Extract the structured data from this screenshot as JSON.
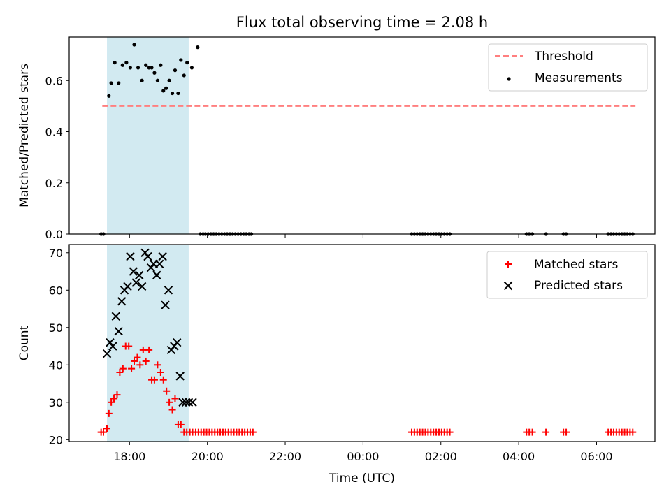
{
  "figure_title": "Flux total observing time = 2.08 h",
  "colors": {
    "shade": "#add8e6",
    "threshold": "#ff7f7f",
    "matched": "#ff0000",
    "predicted": "#000000",
    "measurement": "#000000"
  },
  "chart_data": [
    {
      "type": "scatter",
      "title": "Flux total observing time = 2.08 h",
      "xlabel": "",
      "ylabel": "Matched/Predicted stars",
      "x_tick_labels": [
        "18:00",
        "20:00",
        "22:00",
        "00:00",
        "02:00",
        "04:00",
        "06:00"
      ],
      "x_tick_hours": [
        18,
        20,
        22,
        24,
        26,
        28,
        30
      ],
      "xlim_hours": [
        16.45,
        31.5
      ],
      "ylim": [
        0,
        0.77
      ],
      "y_ticks": [
        0.0,
        0.2,
        0.4,
        0.6
      ],
      "y_tick_labels": [
        "0.0",
        "0.2",
        "0.4",
        "0.6"
      ],
      "grid": false,
      "legend_position": "upper right",
      "shaded_span_hours": [
        17.42,
        19.52
      ],
      "threshold": {
        "name": "Threshold",
        "y": 0.5,
        "x_hours": [
          17.3,
          31.0
        ],
        "style": "dashed"
      },
      "series": [
        {
          "name": "Measurements",
          "marker": "dot",
          "x_hours": [
            17.27,
            17.33,
            17.47,
            17.53,
            17.62,
            17.72,
            17.82,
            17.92,
            18.02,
            18.12,
            18.22,
            18.32,
            18.42,
            18.5,
            18.57,
            18.64,
            18.72,
            18.8,
            18.87,
            18.94,
            19.02,
            19.1,
            19.17,
            19.25,
            19.32,
            19.4,
            19.48,
            19.6,
            19.75,
            19.82,
            19.89,
            19.95,
            20.02,
            20.09,
            20.16,
            20.23,
            20.3,
            20.37,
            20.44,
            20.51,
            20.58,
            20.65,
            20.72,
            20.79,
            20.86,
            20.93,
            21.0,
            21.07,
            21.13,
            25.25,
            25.32,
            25.39,
            25.46,
            25.53,
            25.6,
            25.67,
            25.74,
            25.81,
            25.88,
            25.95,
            26.02,
            26.09,
            26.16,
            26.23,
            28.2,
            28.27,
            28.35,
            28.7,
            29.15,
            29.22,
            30.3,
            30.37,
            30.44,
            30.51,
            30.58,
            30.65,
            30.72,
            30.79,
            30.86,
            30.93
          ],
          "y": [
            0.0,
            0.0,
            0.54,
            0.59,
            0.67,
            0.59,
            0.66,
            0.67,
            0.65,
            0.74,
            0.65,
            0.6,
            0.66,
            0.65,
            0.65,
            0.63,
            0.6,
            0.66,
            0.56,
            0.57,
            0.6,
            0.55,
            0.64,
            0.55,
            0.68,
            0.62,
            0.67,
            0.65,
            0.73,
            0.0,
            0.0,
            0.0,
            0.0,
            0.0,
            0.0,
            0.0,
            0.0,
            0.0,
            0.0,
            0.0,
            0.0,
            0.0,
            0.0,
            0.0,
            0.0,
            0.0,
            0.0,
            0.0,
            0.0,
            0.0,
            0.0,
            0.0,
            0.0,
            0.0,
            0.0,
            0.0,
            0.0,
            0.0,
            0.0,
            0.0,
            0.0,
            0.0,
            0.0,
            0.0,
            0.0,
            0.0,
            0.0,
            0.0,
            0.0,
            0.0,
            0.0,
            0.0,
            0.0,
            0.0,
            0.0,
            0.0,
            0.0,
            0.0,
            0.0,
            0.0
          ]
        }
      ]
    },
    {
      "type": "scatter",
      "title": "",
      "xlabel": "Time (UTC)",
      "ylabel": "Count",
      "x_tick_labels": [
        "18:00",
        "20:00",
        "22:00",
        "00:00",
        "02:00",
        "04:00",
        "06:00"
      ],
      "x_tick_hours": [
        18,
        20,
        22,
        24,
        26,
        28,
        30
      ],
      "xlim_hours": [
        16.45,
        31.5
      ],
      "ylim": [
        19.5,
        72.2
      ],
      "y_ticks": [
        20,
        30,
        40,
        50,
        60,
        70
      ],
      "y_tick_labels": [
        "20",
        "30",
        "40",
        "50",
        "60",
        "70"
      ],
      "grid": false,
      "legend_position": "upper right",
      "shaded_span_hours": [
        17.42,
        19.52
      ],
      "series": [
        {
          "name": "Matched stars",
          "marker": "plus",
          "x_hours": [
            17.27,
            17.33,
            17.42,
            17.47,
            17.53,
            17.6,
            17.68,
            17.75,
            17.83,
            17.9,
            17.98,
            18.05,
            18.12,
            18.2,
            18.27,
            18.35,
            18.42,
            18.5,
            18.57,
            18.64,
            18.72,
            18.8,
            18.87,
            18.95,
            19.02,
            19.1,
            19.17,
            19.25,
            19.32,
            19.4,
            19.47,
            19.55,
            19.62,
            19.7,
            19.77,
            19.84,
            19.91,
            19.98,
            20.05,
            20.12,
            20.19,
            20.26,
            20.33,
            20.4,
            20.47,
            20.54,
            20.61,
            20.68,
            20.75,
            20.82,
            20.89,
            20.96,
            21.03,
            21.1,
            21.17,
            25.25,
            25.32,
            25.39,
            25.46,
            25.53,
            25.6,
            25.67,
            25.74,
            25.81,
            25.88,
            25.95,
            26.02,
            26.09,
            26.16,
            26.23,
            28.2,
            28.27,
            28.35,
            28.7,
            29.15,
            29.22,
            30.3,
            30.37,
            30.44,
            30.51,
            30.58,
            30.65,
            30.72,
            30.79,
            30.86,
            30.93
          ],
          "y": [
            22,
            22,
            23,
            27,
            30,
            31,
            32,
            38,
            39,
            45,
            45,
            39,
            41,
            42,
            40,
            44,
            41,
            44,
            36,
            36,
            40,
            38,
            36,
            33,
            30,
            28,
            31,
            24,
            24,
            22,
            22,
            22,
            22,
            22,
            22,
            22,
            22,
            22,
            22,
            22,
            22,
            22,
            22,
            22,
            22,
            22,
            22,
            22,
            22,
            22,
            22,
            22,
            22,
            22,
            22,
            22,
            22,
            22,
            22,
            22,
            22,
            22,
            22,
            22,
            22,
            22,
            22,
            22,
            22,
            22,
            22,
            22,
            22,
            22,
            22,
            22,
            22,
            22,
            22,
            22,
            22,
            22,
            22,
            22,
            22,
            22
          ]
        },
        {
          "name": "Predicted stars",
          "marker": "cross",
          "x_hours": [
            17.42,
            17.5,
            17.57,
            17.65,
            17.72,
            17.8,
            17.87,
            17.95,
            18.02,
            18.1,
            18.17,
            18.25,
            18.32,
            18.4,
            18.47,
            18.55,
            18.62,
            18.7,
            18.77,
            18.85,
            18.92,
            19.0,
            19.07,
            19.15,
            19.22,
            19.3,
            19.37,
            19.45,
            19.52,
            19.62
          ],
          "y": [
            43,
            46,
            45,
            53,
            49,
            57,
            60,
            61,
            69,
            65,
            62,
            64,
            61,
            70,
            69,
            66,
            67,
            64,
            67,
            69,
            56,
            60,
            44,
            45,
            46,
            37,
            30,
            30,
            30,
            30
          ]
        }
      ]
    }
  ]
}
